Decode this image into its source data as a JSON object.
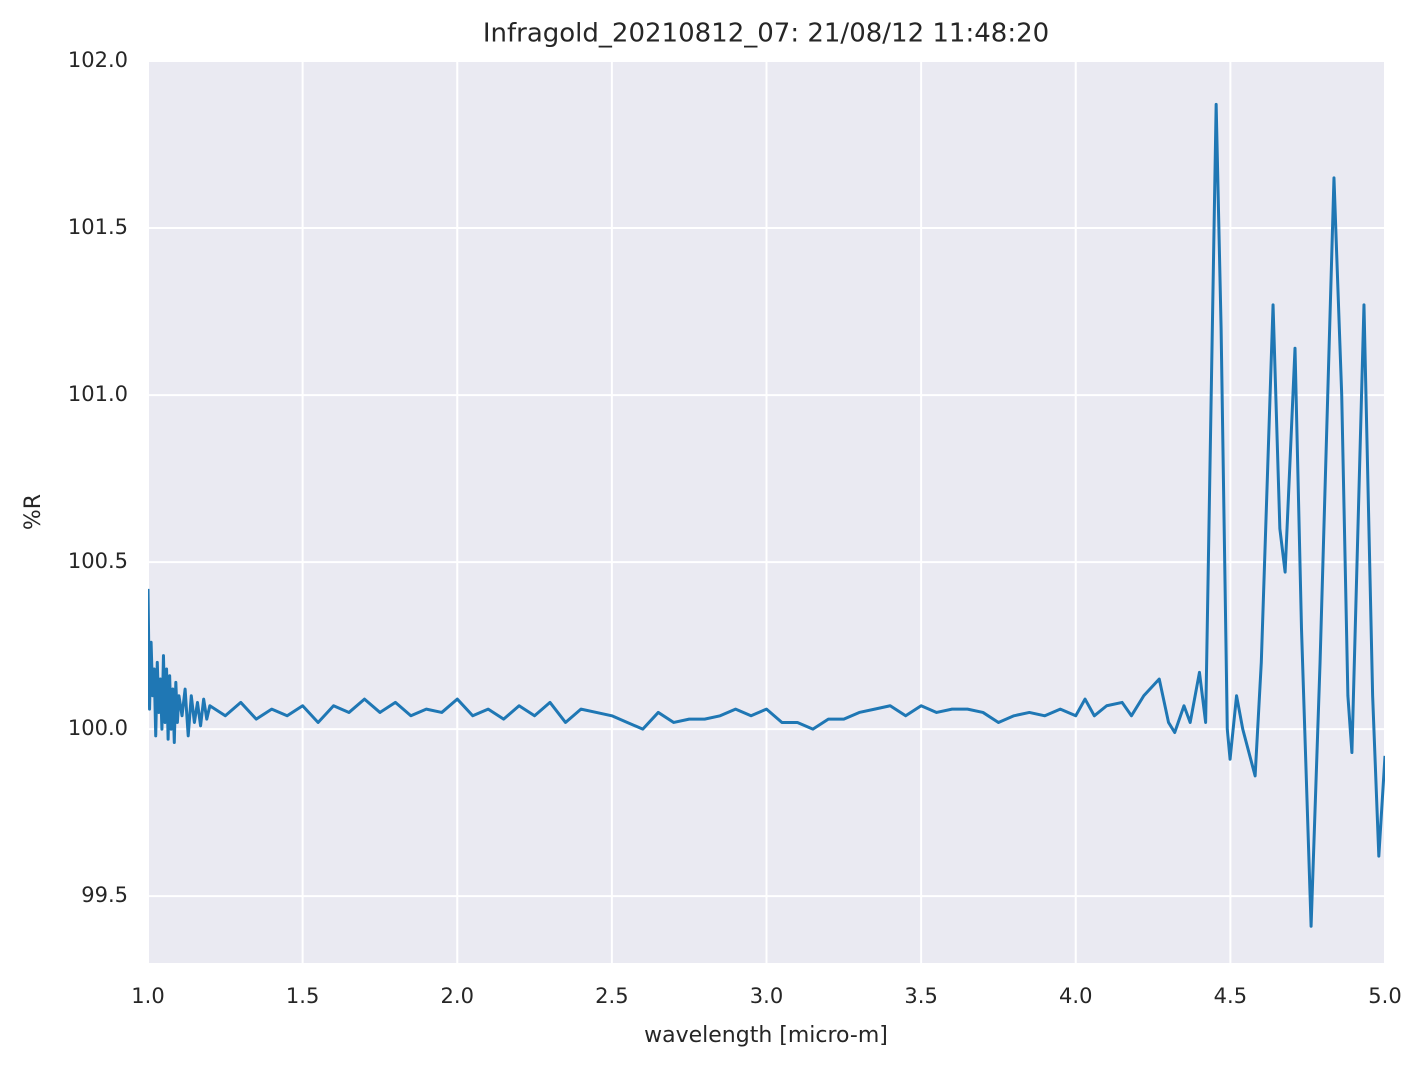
{
  "chart_data": {
    "type": "line",
    "title": "Infragold_20210812_07:  21/08/12 11:48:20",
    "xlabel": "wavelength [micro-m]",
    "ylabel": "%R",
    "color": "#1f77b4",
    "grid": true,
    "xlim": [
      1.0,
      5.0
    ],
    "ylim": [
      99.3,
      102.0
    ],
    "xticks": [
      {
        "value": 1.0,
        "label": "1.0"
      },
      1.5,
      {
        "value": 2.0,
        "label": "2.0"
      },
      2.5,
      {
        "value": 3.0,
        "label": "3.0"
      },
      3.5,
      {
        "value": 4.0,
        "label": "4.0"
      },
      4.5,
      {
        "value": 5.0,
        "label": "5.0"
      }
    ],
    "yticks": [
      99.5,
      {
        "value": 100.0,
        "label": "100.0"
      },
      100.5,
      {
        "value": 101.0,
        "label": "101.0"
      },
      101.5,
      {
        "value": 102.0,
        "label": "102.0"
      }
    ],
    "x": [
      1.0,
      1.005,
      1.01,
      1.015,
      1.02,
      1.025,
      1.03,
      1.035,
      1.04,
      1.045,
      1.05,
      1.055,
      1.06,
      1.065,
      1.07,
      1.075,
      1.08,
      1.085,
      1.09,
      1.095,
      1.1,
      1.11,
      1.12,
      1.13,
      1.14,
      1.15,
      1.16,
      1.17,
      1.18,
      1.19,
      1.2,
      1.25,
      1.3,
      1.35,
      1.4,
      1.45,
      1.5,
      1.55,
      1.6,
      1.65,
      1.7,
      1.75,
      1.8,
      1.85,
      1.9,
      1.95,
      2.0,
      2.05,
      2.1,
      2.15,
      2.2,
      2.25,
      2.3,
      2.35,
      2.4,
      2.45,
      2.5,
      2.55,
      2.6,
      2.65,
      2.7,
      2.75,
      2.8,
      2.85,
      2.9,
      2.95,
      3.0,
      3.05,
      3.1,
      3.15,
      3.2,
      3.25,
      3.3,
      3.35,
      3.4,
      3.45,
      3.5,
      3.55,
      3.6,
      3.65,
      3.7,
      3.75,
      3.8,
      3.85,
      3.9,
      3.95,
      4.0,
      4.03,
      4.06,
      4.1,
      4.15,
      4.18,
      4.22,
      4.27,
      4.3,
      4.32,
      4.35,
      4.37,
      4.4,
      4.42,
      4.454,
      4.47,
      4.49,
      4.499,
      4.52,
      4.54,
      4.58,
      4.6,
      4.638,
      4.66,
      4.677,
      4.709,
      4.73,
      4.761,
      4.79,
      4.835,
      4.86,
      4.88,
      4.893,
      4.932,
      4.96,
      4.98,
      5.0
    ],
    "values": [
      100.42,
      100.06,
      100.26,
      100.1,
      100.18,
      99.98,
      100.2,
      100.05,
      100.15,
      100.0,
      100.22,
      100.02,
      100.18,
      99.97,
      100.16,
      100.0,
      100.12,
      99.96,
      100.14,
      100.02,
      100.1,
      100.04,
      100.12,
      99.98,
      100.1,
      100.02,
      100.08,
      100.01,
      100.09,
      100.03,
      100.07,
      100.04,
      100.08,
      100.03,
      100.06,
      100.04,
      100.07,
      100.02,
      100.07,
      100.05,
      100.09,
      100.05,
      100.08,
      100.04,
      100.06,
      100.05,
      100.09,
      100.04,
      100.06,
      100.03,
      100.07,
      100.04,
      100.08,
      100.02,
      100.06,
      100.05,
      100.04,
      100.02,
      100.0,
      100.05,
      100.02,
      100.03,
      100.03,
      100.04,
      100.06,
      100.04,
      100.06,
      100.02,
      100.02,
      100.0,
      100.03,
      100.03,
      100.05,
      100.06,
      100.07,
      100.04,
      100.07,
      100.05,
      100.06,
      100.06,
      100.05,
      100.02,
      100.04,
      100.05,
      100.04,
      100.06,
      100.04,
      100.09,
      100.04,
      100.07,
      100.08,
      100.04,
      100.1,
      100.15,
      100.02,
      99.99,
      100.07,
      100.02,
      100.17,
      100.02,
      101.87,
      101.2,
      100.0,
      99.91,
      100.1,
      100.0,
      99.86,
      100.2,
      101.27,
      100.6,
      100.47,
      101.14,
      100.3,
      99.41,
      100.2,
      101.65,
      101.0,
      100.1,
      99.93,
      101.27,
      100.1,
      99.62,
      99.92
    ]
  }
}
